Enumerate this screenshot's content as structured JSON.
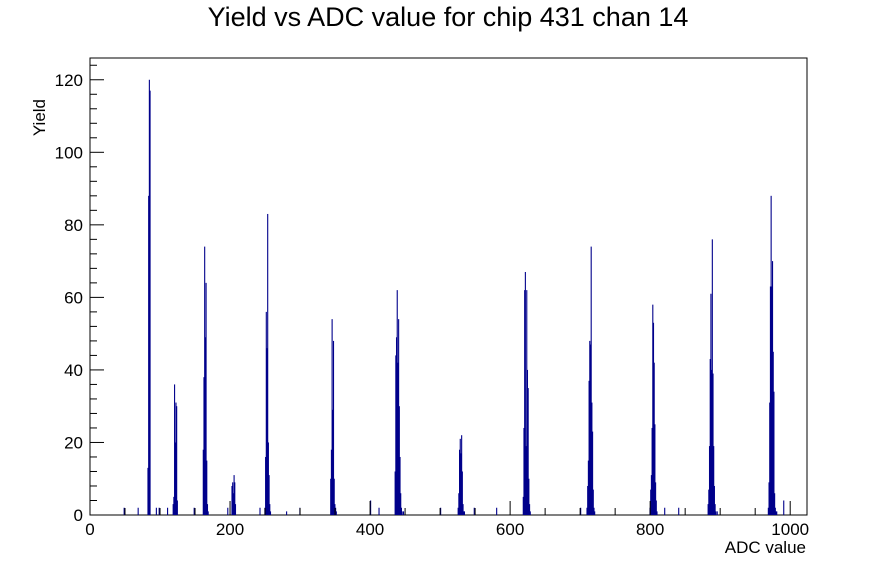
{
  "chart_data": {
    "type": "bar",
    "title": "Yield vs ADC value for chip 431 chan 14",
    "xlabel": "ADC value",
    "ylabel": "Yield",
    "xlim": [
      0,
      1024
    ],
    "ylim": [
      0,
      126
    ],
    "x_ticks": [
      0,
      200,
      400,
      600,
      800,
      1000
    ],
    "y_ticks": [
      0,
      20,
      40,
      60,
      80,
      100,
      120
    ],
    "bin_width": 1,
    "line_color": "#00008b",
    "series": [
      {
        "x": [
          48,
          68,
          82,
          83,
          84,
          85,
          94,
          98,
          110,
          118,
          119,
          120,
          121,
          122,
          123,
          124,
          148,
          161,
          162,
          163,
          164,
          165,
          166,
          167,
          168,
          196,
          202,
          203,
          204,
          205,
          206,
          207,
          242,
          249,
          250,
          251,
          252,
          253,
          254,
          255,
          256,
          257,
          280,
          299,
          343,
          344,
          345,
          346,
          347,
          348,
          349,
          350,
          351,
          400,
          412,
          435,
          436,
          437,
          438,
          439,
          440,
          441,
          442,
          443,
          444,
          445,
          447,
          500,
          525,
          526,
          527,
          528,
          529,
          530,
          531,
          532,
          533,
          534,
          548,
          580,
          618,
          619,
          620,
          621,
          622,
          623,
          624,
          625,
          626,
          627,
          628,
          700,
          709,
          710,
          711,
          712,
          713,
          714,
          715,
          716,
          717,
          718,
          719,
          720,
          799,
          800,
          801,
          802,
          803,
          804,
          805,
          806,
          807,
          808,
          809,
          820,
          840,
          882,
          883,
          884,
          885,
          886,
          887,
          888,
          889,
          890,
          891,
          892,
          893,
          895,
          968,
          969,
          970,
          971,
          972,
          973,
          974,
          975,
          976,
          977,
          978,
          979,
          980,
          990
        ],
        "y": [
          2,
          2,
          13,
          88,
          120,
          117,
          2,
          2,
          2,
          3,
          5,
          36,
          20,
          31,
          30,
          4,
          2,
          18,
          38,
          74,
          49,
          64,
          15,
          3,
          1,
          2,
          8,
          9,
          6,
          11,
          9,
          3,
          2,
          2,
          16,
          56,
          46,
          83,
          20,
          11,
          3,
          1,
          1,
          2,
          10,
          18,
          54,
          29,
          48,
          10,
          3,
          2,
          1,
          4,
          2,
          12,
          44,
          49,
          62,
          42,
          54,
          30,
          16,
          6,
          2,
          1,
          1,
          2,
          2,
          6,
          18,
          21,
          17,
          22,
          12,
          3,
          1,
          1,
          2,
          2,
          5,
          24,
          62,
          67,
          19,
          62,
          40,
          35,
          10,
          3,
          1,
          2,
          2,
          8,
          15,
          37,
          48,
          47,
          74,
          31,
          23,
          7,
          2,
          1,
          2,
          7,
          11,
          24,
          58,
          53,
          42,
          25,
          9,
          4,
          1,
          2,
          2,
          3,
          7,
          19,
          43,
          61,
          40,
          76,
          39,
          19,
          8,
          3,
          1,
          1,
          2,
          9,
          31,
          63,
          88,
          63,
          70,
          45,
          34,
          6,
          2,
          1,
          1,
          4
        ]
      }
    ]
  }
}
